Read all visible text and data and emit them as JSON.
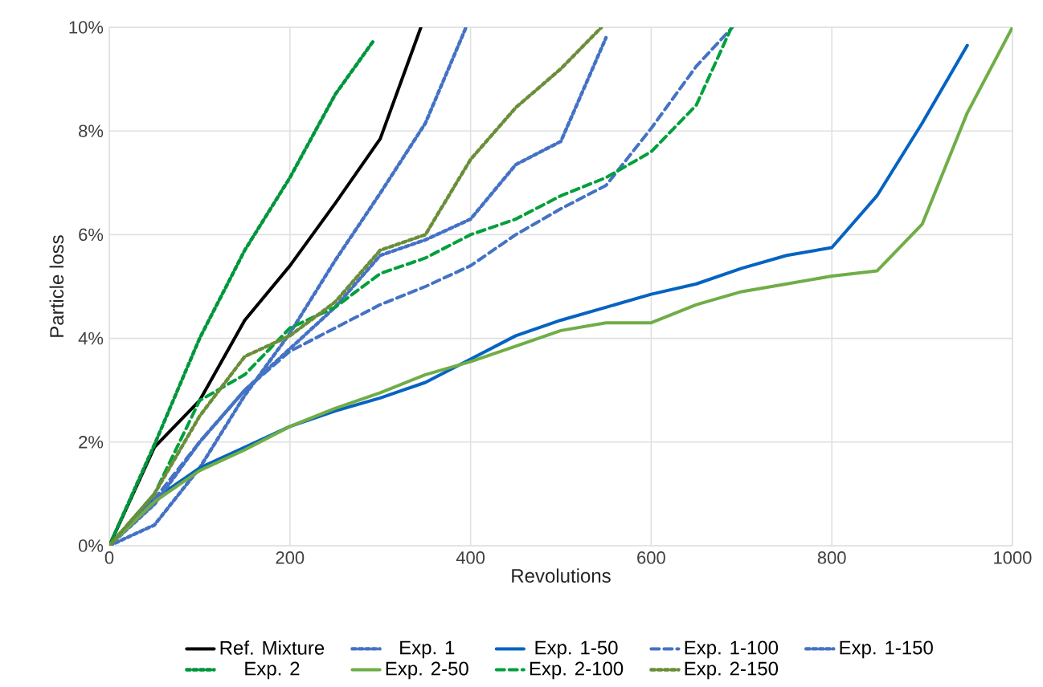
{
  "chart_data": {
    "type": "line",
    "xlabel": "Revolutions",
    "ylabel": "Particle loss",
    "xlim": [
      0,
      1000
    ],
    "xticks": [
      0,
      200,
      400,
      600,
      800,
      1000
    ],
    "ylim": [
      0,
      10
    ],
    "yticks": [
      {
        "value": 0,
        "label": "0%"
      },
      {
        "value": 2,
        "label": "2%"
      },
      {
        "value": 4,
        "label": "4%"
      },
      {
        "value": 6,
        "label": "6%"
      },
      {
        "value": 8,
        "label": "8%"
      },
      {
        "value": 10,
        "label": "10%"
      }
    ],
    "grid": true,
    "legend": "bottom",
    "series": [
      {
        "name": "Ref. Mixture",
        "color": "#000000",
        "line_style": "solid",
        "x": [
          0,
          50,
          100,
          150,
          200,
          250,
          300,
          345
        ],
        "values": [
          0,
          1.9,
          2.8,
          4.35,
          5.4,
          6.6,
          7.85,
          10
        ]
      },
      {
        "name": "Exp. 1",
        "color": "#4472c4",
        "line_style": "dotted",
        "x": [
          0,
          50,
          100,
          150,
          200,
          250,
          300,
          350,
          395
        ],
        "values": [
          0,
          0.4,
          1.5,
          2.9,
          4.1,
          5.5,
          6.8,
          8.15,
          10
        ]
      },
      {
        "name": "Exp. 1-50",
        "color": "#0563c1",
        "line_style": "solid",
        "x": [
          0,
          50,
          100,
          150,
          200,
          250,
          300,
          350,
          400,
          450,
          500,
          550,
          600,
          650,
          700,
          750,
          800,
          850,
          900,
          950
        ],
        "values": [
          0,
          0.9,
          1.5,
          1.9,
          2.3,
          2.6,
          2.85,
          3.15,
          3.6,
          4.05,
          4.35,
          4.6,
          4.85,
          5.05,
          5.35,
          5.6,
          5.75,
          6.75,
          8.15,
          9.65
        ]
      },
      {
        "name": "Exp. 1-100",
        "color": "#4472c4",
        "line_style": "dashed",
        "x": [
          0,
          50,
          100,
          150,
          200,
          250,
          300,
          350,
          400,
          450,
          500,
          550,
          600,
          650,
          690
        ],
        "values": [
          0,
          0.9,
          2.0,
          3.0,
          3.75,
          4.2,
          4.65,
          5.0,
          5.4,
          6.0,
          6.5,
          6.95,
          8.05,
          9.25,
          10
        ]
      },
      {
        "name": "Exp. 1-150",
        "color": "#4472c4",
        "line_style": "dotted",
        "x": [
          0,
          50,
          100,
          150,
          200,
          250,
          300,
          350,
          400,
          450,
          500,
          550
        ],
        "values": [
          0,
          0.8,
          2.0,
          3.0,
          3.8,
          4.6,
          5.6,
          5.9,
          6.3,
          7.35,
          7.8,
          9.8
        ]
      },
      {
        "name": "Exp. 2",
        "color": "#00963c",
        "line_style": "dotted",
        "x": [
          0,
          50,
          100,
          150,
          200,
          250,
          293
        ],
        "values": [
          0,
          1.95,
          4.0,
          5.7,
          7.1,
          8.7,
          9.75
        ]
      },
      {
        "name": "Exp. 2-50",
        "color": "#70ad47",
        "line_style": "solid",
        "x": [
          0,
          50,
          100,
          150,
          200,
          250,
          300,
          350,
          400,
          450,
          500,
          550,
          600,
          650,
          700,
          750,
          800,
          850,
          900,
          950,
          1000
        ],
        "values": [
          0,
          0.85,
          1.45,
          1.85,
          2.3,
          2.65,
          2.95,
          3.3,
          3.55,
          3.85,
          4.15,
          4.3,
          4.3,
          4.65,
          4.9,
          5.05,
          5.2,
          5.3,
          6.2,
          8.35,
          10
        ]
      },
      {
        "name": "Exp. 2-100",
        "color": "#00a03c",
        "line_style": "dashed",
        "x": [
          0,
          50,
          100,
          150,
          200,
          250,
          300,
          350,
          400,
          450,
          500,
          550,
          600,
          650,
          689
        ],
        "values": [
          0,
          1.0,
          2.8,
          3.3,
          4.2,
          4.6,
          5.25,
          5.55,
          6.0,
          6.3,
          6.75,
          7.1,
          7.6,
          8.5,
          10
        ]
      },
      {
        "name": "Exp. 2-150",
        "color": "#6b8e3a",
        "line_style": "dotted",
        "x": [
          0,
          50,
          100,
          150,
          200,
          250,
          300,
          350,
          400,
          450,
          500,
          545
        ],
        "values": [
          0,
          1.0,
          2.5,
          3.65,
          4.05,
          4.7,
          5.7,
          6.0,
          7.45,
          8.45,
          9.2,
          10
        ]
      }
    ]
  }
}
